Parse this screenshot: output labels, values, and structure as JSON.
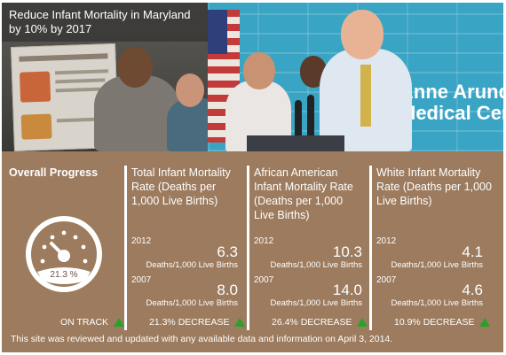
{
  "banner": {
    "title": "Reduce Infant Mortality in Maryland by 10% by 2017",
    "backdrop_text": [
      "Anne Arundel",
      "Medical Center"
    ]
  },
  "overall": {
    "heading": "Overall Progress",
    "gauge_value": "21.3 %",
    "status": "ON TRACK"
  },
  "metrics": [
    {
      "heading": "Total Infant Mortality Rate (Deaths per 1,000 Live Births)",
      "year_recent": "2012",
      "value_recent": "6.3",
      "unit_recent": "Deaths/1,000 Live Births",
      "year_base": "2007",
      "value_base": "8.0",
      "unit_base": "Deaths/1,000 Live Births",
      "change": "21.3% DECREASE"
    },
    {
      "heading": "African American Infant Mortality Rate (Deaths per 1,000 Live Births)",
      "year_recent": "2012",
      "value_recent": "10.3",
      "unit_recent": "Deaths/1,000 Live Births",
      "year_base": "2007",
      "value_base": "14.0",
      "unit_base": "Deaths/1,000 Live Births",
      "change": "26.4% DECREASE"
    },
    {
      "heading": "White Infant Mortality Rate (Deaths per 1,000 Live Births)",
      "year_recent": "2012",
      "value_recent": "4.1",
      "unit_recent": "Deaths/1,000 Live Births",
      "year_base": "2007",
      "value_base": "4.6",
      "unit_base": "Deaths/1,000 Live Births",
      "change": "10.9% DECREASE"
    }
  ],
  "footer_note": "This site was reviewed and updated with any available data and information on April 3, 2014.",
  "colors": {
    "panel_bg": "#9c7b5e",
    "up_arrow": "#2aa12a",
    "text": "#ffffff"
  },
  "icons": [
    "speedometer-icon",
    "up-arrow-icon"
  ]
}
